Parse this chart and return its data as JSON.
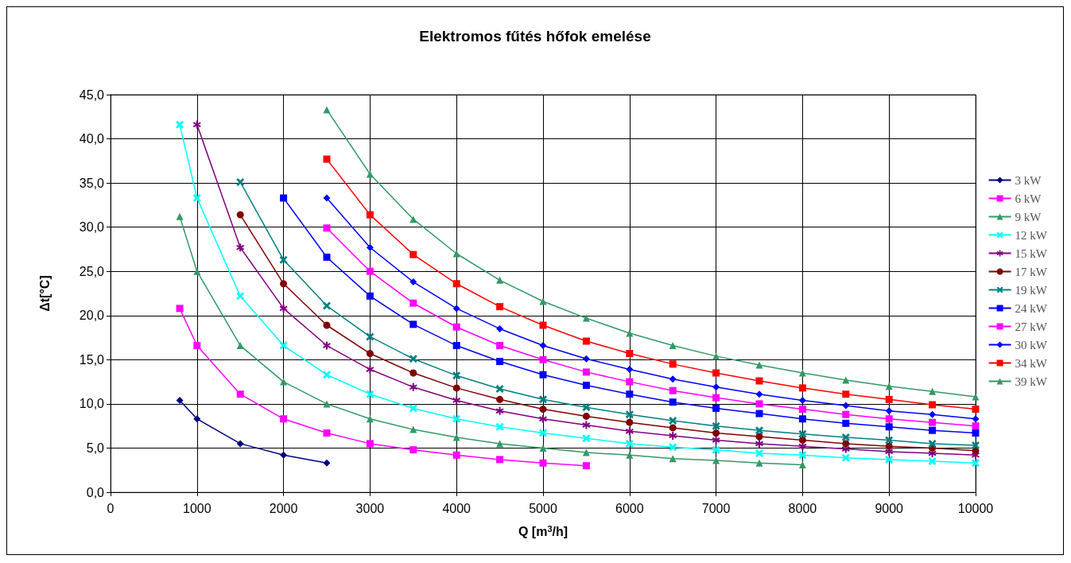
{
  "chart_data": {
    "type": "line",
    "title": "Elektromos fűtés hőfok emelése",
    "xlabel": "Q [m$^{3}$/h]",
    "ylabel": "Δt[°C]",
    "xlim": [
      0,
      10000
    ],
    "xticks": [
      0,
      1000,
      2000,
      3000,
      4000,
      5000,
      6000,
      7000,
      8000,
      9000,
      10000
    ],
    "ylim": [
      0,
      45
    ],
    "yticks": [
      {
        "value": 0,
        "label": "0,0"
      },
      {
        "value": 5,
        "label": "5,0"
      },
      {
        "value": 10,
        "label": "10,0"
      },
      {
        "value": 15,
        "label": "15,0"
      },
      {
        "value": 20,
        "label": "20,0"
      },
      {
        "value": 25,
        "label": "25,0"
      },
      {
        "value": 30,
        "label": "30,0"
      },
      {
        "value": 35,
        "label": "35,0"
      },
      {
        "value": 40,
        "label": "40,0"
      },
      {
        "value": 45,
        "label": "45,0"
      }
    ],
    "grid": true,
    "legend": "right",
    "line_style": "solid",
    "series": [
      {
        "name": "3 kW",
        "color": "#000080",
        "marker": "diamond",
        "x": [
          800,
          1000,
          1500,
          2000,
          2500
        ],
        "values": [
          10.4,
          8.3,
          5.5,
          4.2,
          3.3
        ]
      },
      {
        "name": "6 kW",
        "color": "#ff00ff",
        "marker": "square",
        "x": [
          800,
          1000,
          1500,
          2000,
          2500,
          3000,
          3500,
          4000,
          4500,
          5000,
          5500
        ],
        "values": [
          20.8,
          16.6,
          11.1,
          8.3,
          6.7,
          5.5,
          4.8,
          4.2,
          3.7,
          3.3,
          3.0
        ]
      },
      {
        "name": "9 kW",
        "color": "#339966",
        "marker": "triangle",
        "x": [
          800,
          1000,
          1500,
          2000,
          2500,
          3000,
          3500,
          4000,
          4500,
          5000,
          5500,
          6000,
          6500,
          7000,
          7500,
          8000
        ],
        "values": [
          31.2,
          25.0,
          16.6,
          12.5,
          10.0,
          8.3,
          7.1,
          6.2,
          5.5,
          5.0,
          4.5,
          4.2,
          3.8,
          3.6,
          3.3,
          3.1
        ]
      },
      {
        "name": "12 kW",
        "color": "#00ffff",
        "marker": "cross",
        "x": [
          800,
          1000,
          1500,
          2000,
          2500,
          3000,
          3500,
          4000,
          4500,
          5000,
          5500,
          6000,
          6500,
          7000,
          7500,
          8000,
          8500,
          9000,
          9500,
          10000
        ],
        "values": [
          41.6,
          33.3,
          22.2,
          16.6,
          13.3,
          11.1,
          9.5,
          8.3,
          7.4,
          6.7,
          6.1,
          5.5,
          5.1,
          4.8,
          4.4,
          4.2,
          3.9,
          3.7,
          3.5,
          3.3
        ]
      },
      {
        "name": "15 kW",
        "color": "#800080",
        "marker": "star",
        "x": [
          1000,
          1500,
          2000,
          2500,
          3000,
          3500,
          4000,
          4500,
          5000,
          5500,
          6000,
          6500,
          7000,
          7500,
          8000,
          8500,
          9000,
          9500,
          10000
        ],
        "values": [
          41.6,
          27.7,
          20.8,
          16.6,
          13.9,
          11.9,
          10.4,
          9.2,
          8.3,
          7.6,
          6.9,
          6.4,
          5.9,
          5.5,
          5.2,
          4.9,
          4.6,
          4.4,
          4.2
        ]
      },
      {
        "name": "17 kW",
        "color": "#800000",
        "marker": "circle",
        "x": [
          1500,
          2000,
          2500,
          3000,
          3500,
          4000,
          4500,
          5000,
          5500,
          6000,
          6500,
          7000,
          7500,
          8000,
          8500,
          9000,
          9500,
          10000
        ],
        "values": [
          31.4,
          23.6,
          18.9,
          15.7,
          13.5,
          11.8,
          10.5,
          9.4,
          8.6,
          7.9,
          7.3,
          6.7,
          6.3,
          5.9,
          5.5,
          5.2,
          5.0,
          4.7
        ]
      },
      {
        "name": "19 kW",
        "color": "#008080",
        "marker": "cross",
        "x": [
          1500,
          2000,
          2500,
          3000,
          3500,
          4000,
          4500,
          5000,
          5500,
          6000,
          6500,
          7000,
          7500,
          8000,
          8500,
          9000,
          9500,
          10000
        ],
        "values": [
          35.1,
          26.3,
          21.1,
          17.6,
          15.1,
          13.2,
          11.7,
          10.5,
          9.6,
          8.8,
          8.1,
          7.5,
          7.0,
          6.6,
          6.2,
          5.9,
          5.5,
          5.3
        ]
      },
      {
        "name": "24 kW",
        "color": "#0000ff",
        "marker": "square",
        "x": [
          2000,
          2500,
          3000,
          3500,
          4000,
          4500,
          5000,
          5500,
          6000,
          6500,
          7000,
          7500,
          8000,
          8500,
          9000,
          9500,
          10000
        ],
        "values": [
          33.3,
          26.6,
          22.2,
          19.0,
          16.6,
          14.8,
          13.3,
          12.1,
          11.1,
          10.2,
          9.5,
          8.9,
          8.3,
          7.8,
          7.4,
          7.0,
          6.7
        ]
      },
      {
        "name": "27 kW",
        "color": "#ff00ff",
        "marker": "square",
        "x": [
          2500,
          3000,
          3500,
          4000,
          4500,
          5000,
          5500,
          6000,
          6500,
          7000,
          7500,
          8000,
          8500,
          9000,
          9500,
          10000
        ],
        "values": [
          29.9,
          25.0,
          21.4,
          18.7,
          16.6,
          15.0,
          13.6,
          12.5,
          11.5,
          10.7,
          10.0,
          9.4,
          8.8,
          8.3,
          7.9,
          7.5
        ]
      },
      {
        "name": "30 kW",
        "color": "#0000ff",
        "marker": "diamond",
        "x": [
          2500,
          3000,
          3500,
          4000,
          4500,
          5000,
          5500,
          6000,
          6500,
          7000,
          7500,
          8000,
          8500,
          9000,
          9500,
          10000
        ],
        "values": [
          33.3,
          27.7,
          23.8,
          20.8,
          18.5,
          16.6,
          15.1,
          13.9,
          12.8,
          11.9,
          11.1,
          10.4,
          9.8,
          9.2,
          8.8,
          8.3
        ]
      },
      {
        "name": "34 kW",
        "color": "#ff0000",
        "marker": "square",
        "x": [
          2500,
          3000,
          3500,
          4000,
          4500,
          5000,
          5500,
          6000,
          6500,
          7000,
          7500,
          8000,
          8500,
          9000,
          9500,
          10000
        ],
        "values": [
          37.7,
          31.4,
          26.9,
          23.6,
          21.0,
          18.9,
          17.1,
          15.7,
          14.5,
          13.5,
          12.6,
          11.8,
          11.1,
          10.5,
          9.9,
          9.4
        ]
      },
      {
        "name": "39 kW",
        "color": "#339966",
        "marker": "triangle",
        "x": [
          2500,
          3000,
          3500,
          4000,
          4500,
          5000,
          5500,
          6000,
          6500,
          7000,
          7500,
          8000,
          8500,
          9000,
          9500,
          10000
        ],
        "values": [
          43.3,
          36.0,
          30.9,
          27.0,
          24.0,
          21.6,
          19.7,
          18.0,
          16.6,
          15.4,
          14.4,
          13.5,
          12.7,
          12.0,
          11.4,
          10.8
        ]
      }
    ]
  }
}
